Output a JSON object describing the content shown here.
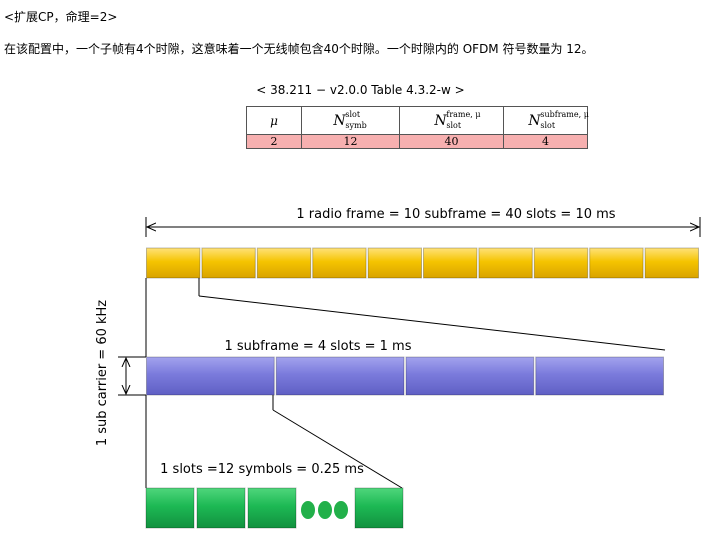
{
  "heading": "<扩展CP，命理=2>",
  "paragraph": "在该配置中，一个子帧有4个时隙，这意味着一个无线帧包含40个时隙。一个时隙内的 OFDM 符号数量为 12。",
  "table": {
    "caption": "< 38.211 − v2.0.0 Table 4.3.2-w >",
    "headers": {
      "mu": "μ",
      "n_symb": {
        "base": "N",
        "sup": "slot",
        "sub": "symb"
      },
      "n_frame": {
        "base": "N",
        "sup": "frame, μ",
        "sub": "slot"
      },
      "n_subframe": {
        "base": "N",
        "sup": "subframe, μ",
        "sub": "slot"
      }
    },
    "row": [
      "2",
      "12",
      "40",
      "4"
    ]
  },
  "diagram": {
    "radio_frame_label": "1 radio frame = 10 subframe = 40 slots = 10 ms",
    "subframe_label": "1 subframe = 4 slots = 1 ms",
    "slot_label": "1 slots =12 symbols = 0.25 ms",
    "carrier_label": "1 sub carrier = 60 kHz",
    "colors": {
      "frame": "#f5c400",
      "subframe": "#7b7bdc",
      "symbol": "#1db954",
      "dots": "#22b04a"
    }
  }
}
